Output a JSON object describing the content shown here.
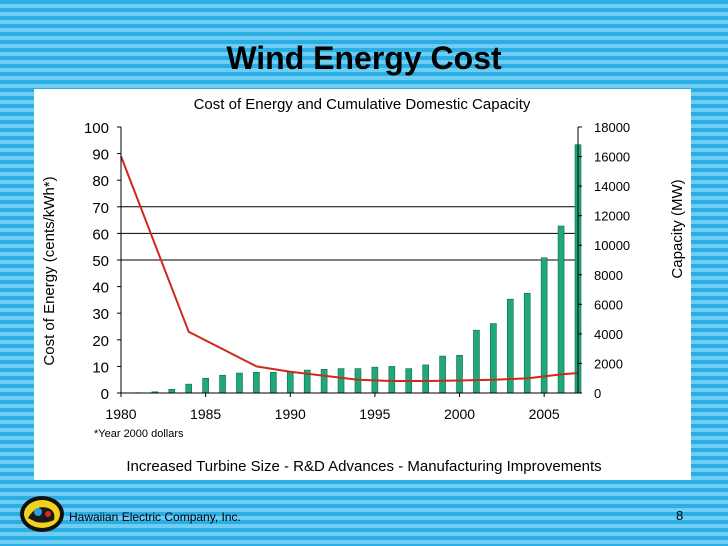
{
  "slide": {
    "title": "Wind Energy Cost",
    "company": "Hawaiian Electric Company, Inc.",
    "page_number": "8"
  },
  "chart_data": {
    "type": "bar",
    "title": "Cost of Energy and Cumulative Domestic Capacity",
    "subtitle": "Increased Turbine Size - R&D Advances - Manufacturing Improvements",
    "footnote": "*Year 2000 dollars",
    "xlabel": "",
    "ylabel_left": "Cost of Energy (cents/kWh*)",
    "ylabel_right": "Capacity (MW)",
    "xlim": [
      1980,
      2007
    ],
    "xticks": [
      1980,
      1985,
      1990,
      1995,
      2000,
      2005
    ],
    "ylim_left": [
      0,
      100
    ],
    "yticks_left": [
      0,
      10,
      20,
      30,
      40,
      50,
      60,
      70,
      80,
      90,
      100
    ],
    "ylim_right": [
      0,
      18000
    ],
    "yticks_right": [
      0,
      2000,
      4000,
      6000,
      8000,
      10000,
      12000,
      14000,
      16000,
      18000
    ],
    "gridlines_left": [
      50,
      60,
      70
    ],
    "colors": {
      "bars": "#20a878",
      "bar_edge": "#0d6b4c",
      "line": "#cc2a1e"
    },
    "capacity_bars": {
      "axis": "right",
      "x": [
        1981,
        1982,
        1983,
        1984,
        1985,
        1986,
        1987,
        1988,
        1989,
        1990,
        1991,
        1992,
        1993,
        1994,
        1995,
        1996,
        1997,
        1998,
        1999,
        2000,
        2001,
        2002,
        2003,
        2004,
        2005,
        2006,
        2007
      ],
      "values": [
        20,
        80,
        250,
        600,
        1000,
        1200,
        1350,
        1400,
        1400,
        1450,
        1550,
        1600,
        1650,
        1650,
        1750,
        1800,
        1650,
        1900,
        2500,
        2550,
        4250,
        4700,
        6350,
        6750,
        9150,
        11300,
        16800
      ]
    },
    "cost_line": {
      "axis": "left",
      "x": [
        1980,
        1984,
        1988,
        1990,
        1992,
        1994,
        1996,
        1998,
        2000,
        2002,
        2004,
        2006,
        2007
      ],
      "values": [
        89,
        23,
        10,
        8,
        6.5,
        5,
        4.5,
        4.5,
        4.7,
        5,
        5.5,
        7,
        7.5
      ]
    }
  }
}
